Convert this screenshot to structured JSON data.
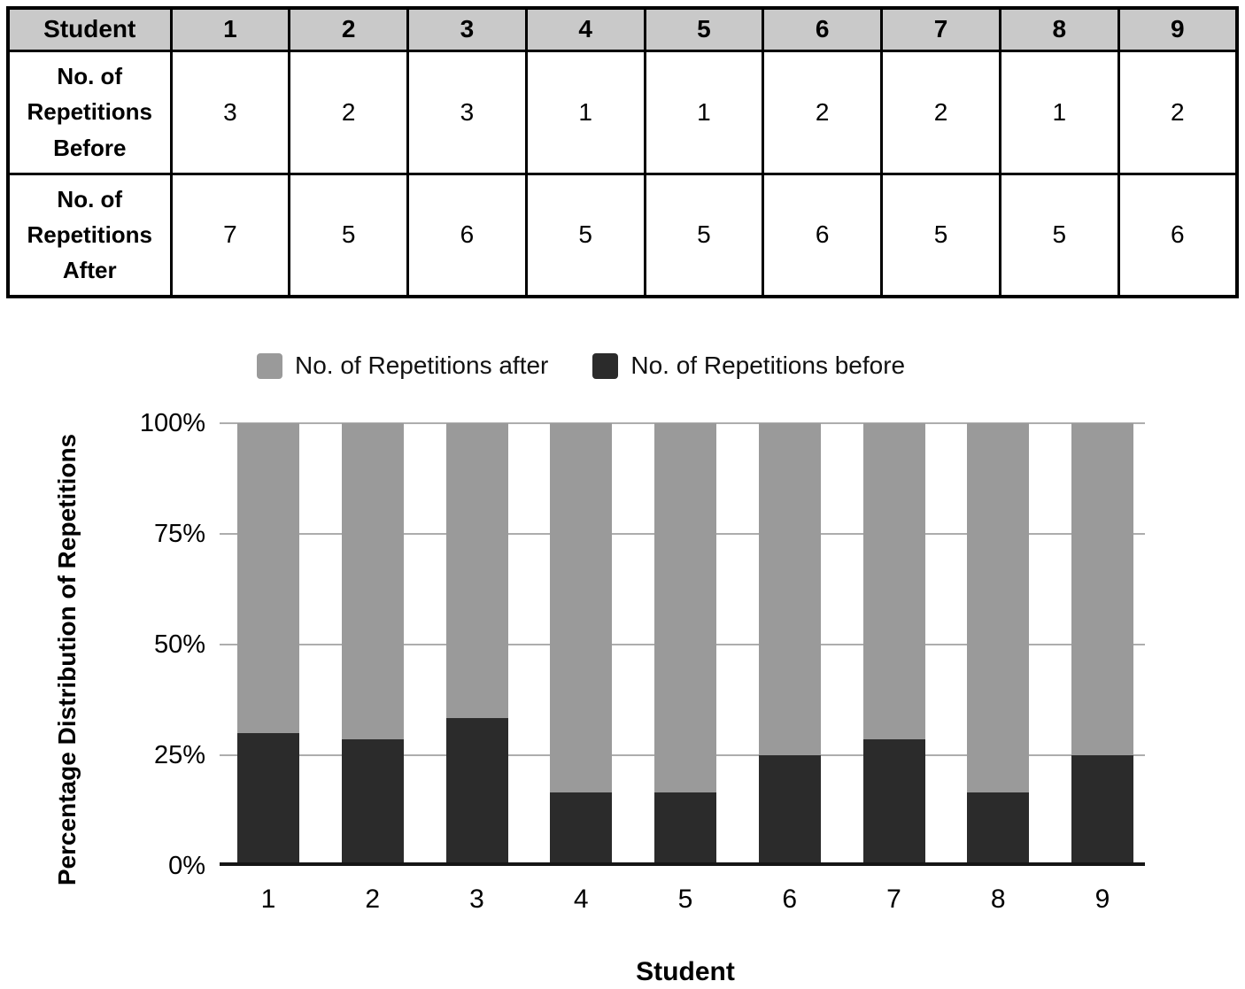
{
  "table": {
    "header": {
      "label": "Student",
      "values": [
        "1",
        "2",
        "3",
        "4",
        "5",
        "6",
        "7",
        "8",
        "9"
      ]
    },
    "rows": [
      {
        "label": "No. of Repetitions Before",
        "values": [
          "3",
          "2",
          "3",
          "1",
          "1",
          "2",
          "2",
          "1",
          "2"
        ]
      },
      {
        "label": "No. of Repetitions After",
        "values": [
          "7",
          "5",
          "6",
          "5",
          "5",
          "6",
          "5",
          "5",
          "6"
        ]
      }
    ]
  },
  "chart_data": {
    "type": "bar",
    "subtype": "stacked-100-percent",
    "categories": [
      "1",
      "2",
      "3",
      "4",
      "5",
      "6",
      "7",
      "8",
      "9"
    ],
    "series": [
      {
        "name": "No. of Repetitions after",
        "color": "#9a9a9a",
        "values": [
          7,
          5,
          6,
          5,
          5,
          6,
          5,
          5,
          6
        ]
      },
      {
        "name": "No. of Repetitions before",
        "color": "#2b2b2b",
        "values": [
          3,
          2,
          3,
          1,
          1,
          2,
          2,
          1,
          2
        ]
      }
    ],
    "percent_before": [
      30,
      28.6,
      33.3,
      16.7,
      16.7,
      25,
      28.6,
      16.7,
      25
    ],
    "percent_after": [
      70,
      71.4,
      66.7,
      83.3,
      83.3,
      75,
      71.4,
      83.3,
      75
    ],
    "xlabel": "Student",
    "ylabel": "Percentage Distribution of Repetitions",
    "yticks": [
      "100%",
      "75%",
      "50%",
      "25%",
      "0%"
    ],
    "ylim": [
      0,
      100
    ],
    "grid": true,
    "legend_position": "top",
    "colors": {
      "after_bar": "#9a9a9a",
      "before_bar": "#2b2b2b",
      "gridline": "#adadad",
      "zero_axis": "#161616",
      "table_header_bg": "#c9c9c9"
    }
  }
}
